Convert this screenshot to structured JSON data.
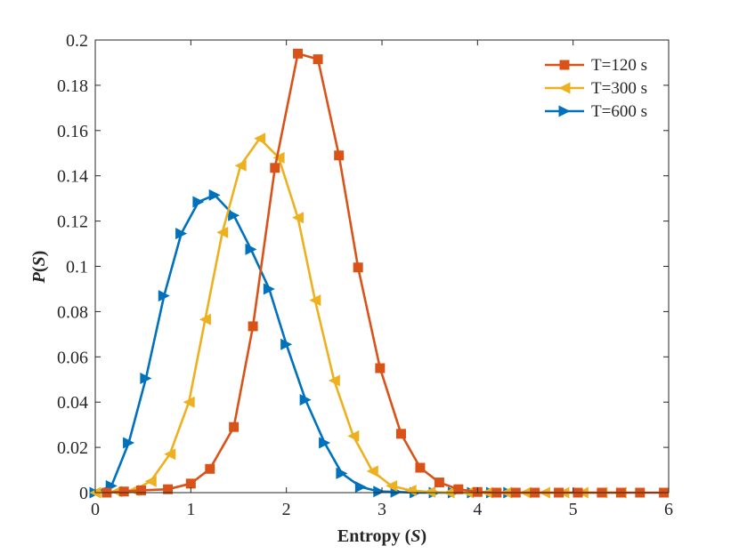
{
  "chart_data": {
    "type": "line",
    "title": "",
    "xlabel_main": "Entropy (",
    "xlabel_var": "S",
    "xlabel_end": ")",
    "ylabel_main": "P",
    "ylabel_open": "(",
    "ylabel_var": "S",
    "ylabel_close": ")",
    "xlim": [
      0,
      6
    ],
    "ylim": [
      0,
      0.2
    ],
    "xticks": [
      0,
      1,
      2,
      3,
      4,
      5,
      6
    ],
    "xtick_labels": [
      "0",
      "1",
      "2",
      "3",
      "4",
      "5",
      "6"
    ],
    "yticks": [
      0,
      0.02,
      0.04,
      0.06,
      0.08,
      0.1,
      0.12,
      0.14,
      0.16,
      0.18,
      0.2
    ],
    "ytick_labels": [
      "0",
      "0.02",
      "0.04",
      "0.06",
      "0.08",
      "0.1",
      "0.12",
      "0.14",
      "0.16",
      "0.18",
      "0.2"
    ],
    "grid": false,
    "legend_position": "top-right",
    "series": [
      {
        "name": "T=120 s",
        "color": "#D95319",
        "marker": "square",
        "x": [
          0.12,
          0.3,
          0.48,
          0.76,
          1.0,
          1.2,
          1.45,
          1.65,
          1.88,
          2.12,
          2.33,
          2.55,
          2.75,
          2.98,
          3.2,
          3.4,
          3.6,
          3.8,
          4.0,
          4.2,
          4.4,
          4.6,
          4.85,
          5.05,
          5.3,
          5.5,
          5.7,
          5.95
        ],
        "y": [
          0.0,
          0.0005,
          0.001,
          0.0015,
          0.004,
          0.0105,
          0.029,
          0.0735,
          0.1435,
          0.194,
          0.1915,
          0.149,
          0.0995,
          0.055,
          0.026,
          0.011,
          0.0045,
          0.0015,
          0.0003,
          0.0,
          0.0,
          0.0,
          0.0,
          0.0,
          0.0,
          0.0,
          0.0,
          0.0
        ]
      },
      {
        "name": "T=300 s",
        "color": "#EDB120",
        "marker": "triangle-left",
        "x": [
          0.0,
          0.22,
          0.4,
          0.58,
          0.78,
          0.98,
          1.15,
          1.33,
          1.52,
          1.72,
          1.92,
          2.12,
          2.3,
          2.5,
          2.7,
          2.9,
          3.1,
          3.3,
          3.5,
          3.7,
          3.9,
          4.1,
          4.3,
          4.5,
          4.7,
          4.9,
          5.1,
          5.3,
          5.5
        ],
        "y": [
          0.0,
          0.0005,
          0.001,
          0.005,
          0.017,
          0.04,
          0.0765,
          0.115,
          0.1445,
          0.1565,
          0.148,
          0.1215,
          0.085,
          0.0495,
          0.025,
          0.0095,
          0.003,
          0.001,
          0.0003,
          0.0,
          0.0,
          0.0,
          0.0,
          0.0,
          0.0,
          0.0,
          0.0,
          0.0,
          0.0
        ]
      },
      {
        "name": "T=600 s",
        "color": "#0072BD",
        "marker": "triangle-right",
        "x": [
          0.0,
          0.17,
          0.35,
          0.53,
          0.72,
          0.9,
          1.08,
          1.25,
          1.45,
          1.63,
          1.82,
          2.0,
          2.2,
          2.4,
          2.58,
          2.78,
          2.97,
          3.15,
          3.35,
          3.55,
          3.75,
          3.95,
          4.15,
          4.33
        ],
        "y": [
          0.0,
          0.003,
          0.022,
          0.0505,
          0.087,
          0.1145,
          0.1285,
          0.1315,
          0.1225,
          0.1075,
          0.09,
          0.0655,
          0.041,
          0.022,
          0.0085,
          0.0025,
          0.0005,
          0.0003,
          0.0,
          0.0,
          0.0,
          0.0,
          0.0,
          0.0
        ]
      }
    ]
  }
}
